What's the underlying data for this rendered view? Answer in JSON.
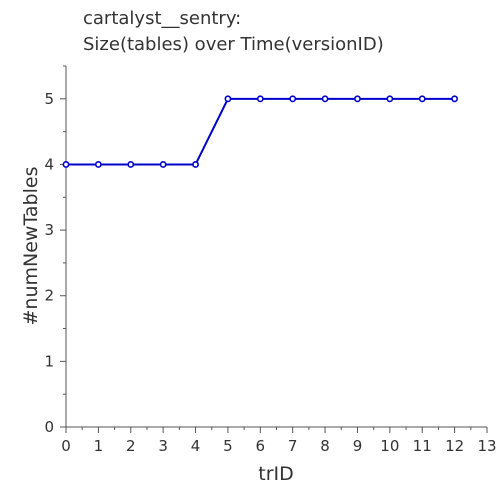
{
  "chart_data": {
    "type": "line",
    "title_lines": [
      "cartalyst__sentry:",
      "Size(tables) over Time(versionID)"
    ],
    "xlabel": "trID",
    "ylabel": "#numNewTables",
    "xlim": [
      0,
      13
    ],
    "ylim": [
      0,
      5.5
    ],
    "x_ticks": [
      0,
      1,
      2,
      3,
      4,
      5,
      6,
      7,
      8,
      9,
      10,
      11,
      12,
      13
    ],
    "y_ticks": [
      0,
      1,
      2,
      3,
      4,
      5
    ],
    "grid": false,
    "series": [
      {
        "color": "#0000cc",
        "x": [
          0,
          1,
          2,
          3,
          4,
          5,
          6,
          7,
          8,
          9,
          10,
          11,
          12
        ],
        "y": [
          4,
          4,
          4,
          4,
          4,
          5,
          5,
          5,
          5,
          5,
          5,
          5,
          5
        ]
      }
    ]
  }
}
